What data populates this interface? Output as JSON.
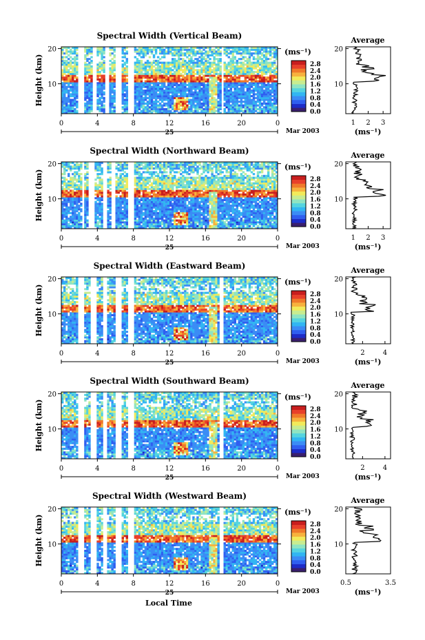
{
  "figure": {
    "xlabel": "Local Time",
    "date_day": "25",
    "date_label": "Mar 2003",
    "ylabel": "Height (km)",
    "unit_label": "(ms⁻¹)"
  },
  "colorbar": {
    "tick_labels": [
      "0.0",
      "0.4",
      "0.8",
      "1.2",
      "1.6",
      "2.0",
      "2.4",
      "2.8"
    ],
    "colors": [
      "#3a1f6e",
      "#1d2cc8",
      "#2f5ff0",
      "#3b8cf5",
      "#32b6f2",
      "#55d4df",
      "#8fe4c2",
      "#c8ec90",
      "#f2ea5a",
      "#f7b23d",
      "#f07a2a",
      "#e8402a",
      "#c81e1e"
    ]
  },
  "chart_data": [
    {
      "type": "heatmap",
      "title": "Spectral Width (Vertical Beam)",
      "x_ticks": [
        "0",
        "4",
        "8",
        "12",
        "16",
        "20",
        "0"
      ],
      "xlim": [
        0,
        24
      ],
      "y_ticks": [
        "20",
        "10"
      ],
      "ylim": [
        1.5,
        20.5
      ],
      "colorbar_range": [
        0.0,
        3.0
      ],
      "data_gaps_hours": [
        [
          1.9,
          2.6
        ],
        [
          3.4,
          4.0
        ],
        [
          4.8,
          5.3
        ],
        [
          5.9,
          6.6
        ],
        [
          7.5,
          8.1
        ],
        [
          17.8,
          18.0
        ]
      ],
      "average_profile": {
        "title": "Average",
        "x_ticks": [
          "1",
          "2",
          "3"
        ],
        "xlim": [
          0.5,
          3.5
        ],
        "y_ticks": [
          "20",
          "10"
        ],
        "xlabel": "(ms⁻¹)"
      }
    },
    {
      "type": "heatmap",
      "title": "Spectral Width (Northward Beam)",
      "x_ticks": [
        "0",
        "4",
        "8",
        "12",
        "16",
        "20",
        "0"
      ],
      "xlim": [
        0,
        24
      ],
      "y_ticks": [
        "20",
        "10"
      ],
      "ylim": [
        1.5,
        20.5
      ],
      "colorbar_range": [
        0.0,
        3.0
      ],
      "data_gaps_hours": [
        [
          2.4,
          2.6
        ],
        [
          3.0,
          3.7
        ],
        [
          4.6,
          5.0
        ],
        [
          5.5,
          5.9
        ],
        [
          7.5,
          8.0
        ]
      ],
      "average_profile": {
        "title": "Average",
        "x_ticks": [
          "1",
          "2",
          "3"
        ],
        "xlim": [
          0.5,
          3.5
        ],
        "y_ticks": [
          "20",
          "10"
        ],
        "xlabel": "(ms⁻¹)"
      }
    },
    {
      "type": "heatmap",
      "title": "Spectral Width (Eastward Beam)",
      "x_ticks": [
        "0",
        "4",
        "8",
        "12",
        "16",
        "20",
        "0"
      ],
      "xlim": [
        0,
        24
      ],
      "y_ticks": [
        "20",
        "10"
      ],
      "ylim": [
        1.5,
        20.5
      ],
      "colorbar_range": [
        0.0,
        3.0
      ],
      "data_gaps_hours": [
        [
          1.9,
          2.6
        ],
        [
          3.3,
          3.9
        ],
        [
          4.7,
          5.1
        ],
        [
          5.9,
          6.6
        ],
        [
          7.5,
          8.0
        ],
        [
          17.6,
          17.9
        ]
      ],
      "average_profile": {
        "title": "Average",
        "x_ticks": [
          "2",
          "4"
        ],
        "xlim": [
          0.5,
          4.5
        ],
        "y_ticks": [
          "20",
          "10"
        ],
        "xlabel": "(ms⁻¹)"
      }
    },
    {
      "type": "heatmap",
      "title": "Spectral Width (Southward Beam)",
      "x_ticks": [
        "0",
        "4",
        "8",
        "12",
        "16",
        "20",
        "0"
      ],
      "xlim": [
        0,
        24
      ],
      "y_ticks": [
        "20",
        "10"
      ],
      "ylim": [
        1.5,
        20.5
      ],
      "colorbar_range": [
        0.0,
        3.0
      ],
      "data_gaps_hours": [
        [
          1.9,
          2.6
        ],
        [
          3.3,
          3.9
        ],
        [
          4.7,
          5.1
        ],
        [
          5.9,
          6.6
        ],
        [
          7.5,
          8.0
        ],
        [
          17.6,
          17.9
        ]
      ],
      "average_profile": {
        "title": "Average",
        "x_ticks": [
          "2",
          "4"
        ],
        "xlim": [
          0.5,
          4.5
        ],
        "y_ticks": [
          "20",
          "10"
        ],
        "xlabel": "(ms⁻¹)"
      }
    },
    {
      "type": "heatmap",
      "title": "Spectral Width (Westward Beam)",
      "x_ticks": [
        "0",
        "4",
        "8",
        "12",
        "16",
        "20",
        "0"
      ],
      "xlim": [
        0,
        24
      ],
      "y_ticks": [
        "20",
        "10"
      ],
      "ylim": [
        1.5,
        20.5
      ],
      "colorbar_range": [
        0.0,
        3.0
      ],
      "data_gaps_hours": [
        [
          1.9,
          2.6
        ],
        [
          3.3,
          3.9
        ],
        [
          4.7,
          5.1
        ],
        [
          5.9,
          6.6
        ],
        [
          7.5,
          8.0
        ],
        [
          17.6,
          17.9
        ]
      ],
      "average_profile": {
        "title": "Average",
        "x_ticks": [
          "0.5",
          "3.5"
        ],
        "xlim": [
          0.5,
          3.5
        ],
        "y_ticks": [
          "20",
          "10"
        ],
        "xlabel": "(ms⁻¹)"
      }
    }
  ]
}
